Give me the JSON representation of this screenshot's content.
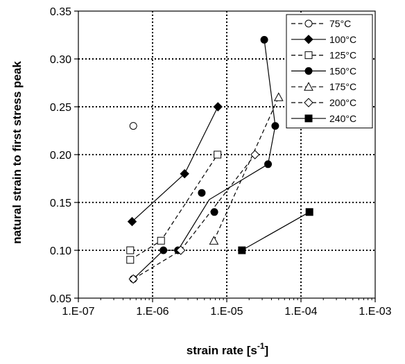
{
  "chart_data": {
    "type": "scatter",
    "title": "",
    "xlabel": "strain rate [s",
    "xlabel_sup": "-1",
    "xlabel_end": "]",
    "ylabel": "natural strain to first stress peak",
    "x_scale": "log",
    "xlim": [
      1e-07,
      0.001
    ],
    "ylim": [
      0.05,
      0.35
    ],
    "x_ticks": [
      1e-07,
      1e-06,
      1e-05,
      0.0001,
      0.001
    ],
    "x_tick_labels": [
      "1.E-07",
      "1.E-06",
      "1.E-05",
      "1.E-04",
      "1.E-03"
    ],
    "y_ticks": [
      0.05,
      0.1,
      0.15,
      0.2,
      0.25,
      0.3,
      0.35
    ],
    "y_tick_labels": [
      "0.05",
      "0.10",
      "0.15",
      "0.20",
      "0.25",
      "0.30",
      "0.35"
    ],
    "grid": true,
    "grid_style": "dotted",
    "legend_position": "top-right",
    "series": [
      {
        "name": "75°C",
        "marker": "circle-open",
        "line": "dashed",
        "points": [
          [
            5.5e-07,
            0.23
          ]
        ],
        "line_points": []
      },
      {
        "name": "100°C",
        "marker": "diamond-filled",
        "line": "solid",
        "points": [
          [
            5.3e-07,
            0.13
          ],
          [
            2.7e-06,
            0.18
          ],
          [
            7.6e-06,
            0.25
          ]
        ],
        "line_points": [
          [
            5.3e-07,
            0.13
          ],
          [
            2.7e-06,
            0.18
          ],
          [
            7.6e-06,
            0.25
          ]
        ]
      },
      {
        "name": "125°C",
        "marker": "square-open",
        "line": "dashed",
        "points": [
          [
            5e-07,
            0.1
          ],
          [
            5e-07,
            0.09
          ],
          [
            1.3e-06,
            0.11
          ],
          [
            7.5e-06,
            0.2
          ]
        ],
        "line_points": [
          [
            5e-07,
            0.09
          ],
          [
            1.3e-06,
            0.11
          ],
          [
            7.5e-06,
            0.2
          ]
        ]
      },
      {
        "name": "150°C",
        "marker": "circle-filled",
        "line": "solid",
        "points": [
          [
            5.5e-07,
            0.07
          ],
          [
            1.4e-06,
            0.1
          ],
          [
            2.2e-06,
            0.1
          ],
          [
            4.6e-06,
            0.16
          ],
          [
            6.8e-06,
            0.14
          ],
          [
            3.6e-05,
            0.19
          ],
          [
            4.5e-05,
            0.23
          ],
          [
            3.2e-05,
            0.32
          ]
        ],
        "line_points": [
          [
            5.5e-07,
            0.07
          ],
          [
            1.4e-06,
            0.1
          ],
          [
            2.2e-06,
            0.1
          ],
          [
            5.8e-06,
            0.153
          ],
          [
            3.6e-05,
            0.19
          ],
          [
            4.5e-05,
            0.23
          ],
          [
            3.2e-05,
            0.32
          ]
        ]
      },
      {
        "name": "175°C",
        "marker": "triangle-open",
        "line": "dashed",
        "points": [
          [
            6.7e-06,
            0.11
          ],
          [
            5e-05,
            0.26
          ]
        ],
        "line_points": [
          [
            6.7e-06,
            0.11
          ],
          [
            5e-05,
            0.26
          ]
        ]
      },
      {
        "name": "200°C",
        "marker": "diamond-open",
        "line": "dashed",
        "points": [
          [
            5.5e-07,
            0.07
          ],
          [
            2.4e-06,
            0.1
          ],
          [
            2.4e-05,
            0.2
          ]
        ],
        "line_points": [
          [
            5.5e-07,
            0.07
          ],
          [
            2.4e-06,
            0.1
          ],
          [
            2.4e-05,
            0.2
          ]
        ]
      },
      {
        "name": "240°C",
        "marker": "square-filled",
        "line": "solid",
        "points": [
          [
            1.6e-05,
            0.1
          ],
          [
            0.00013,
            0.14
          ]
        ],
        "line_points": [
          [
            1.6e-05,
            0.1
          ],
          [
            0.00013,
            0.14
          ]
        ]
      }
    ]
  }
}
